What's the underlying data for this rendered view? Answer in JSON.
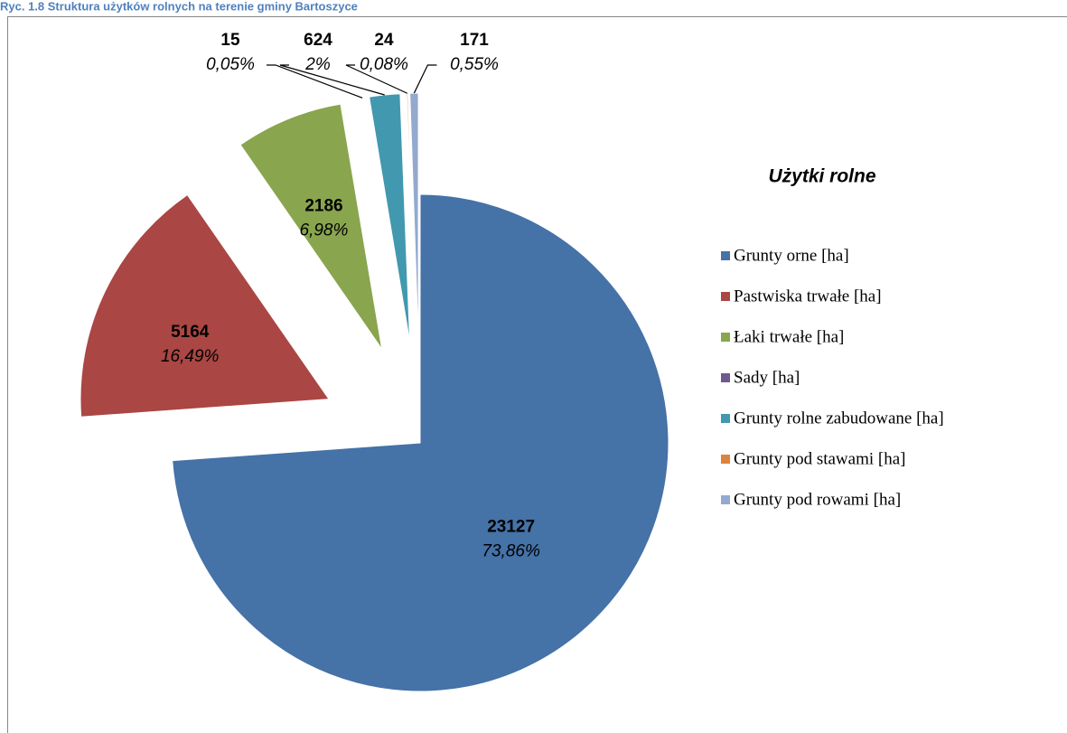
{
  "chart_data": {
    "type": "pie",
    "title": "Ryc. 1.8 Struktura użytków rolnych na terenie gminy Bartoszyce",
    "legend_title": "Użytki rolne",
    "categories": [
      "Grunty orne [ha]",
      "Pastwiska trwałe [ha]",
      "Łaki trwałe [ha]",
      "Sady [ha]",
      "Grunty rolne zabudowane [ha]",
      "Grunty pod stawami [ha]",
      "Grunty pod rowami [ha]"
    ],
    "values": [
      23127,
      5164,
      2186,
      15,
      624,
      24,
      171
    ],
    "percent_labels": [
      "73,86%",
      "16,49%",
      "6,98%",
      "0,05%",
      "2%",
      "0,08%",
      "0,55%"
    ],
    "colors": [
      "#4572a7",
      "#aa4643",
      "#89a54e",
      "#71588f",
      "#4198af",
      "#db843d",
      "#93a9cf"
    ],
    "legend": "right"
  }
}
